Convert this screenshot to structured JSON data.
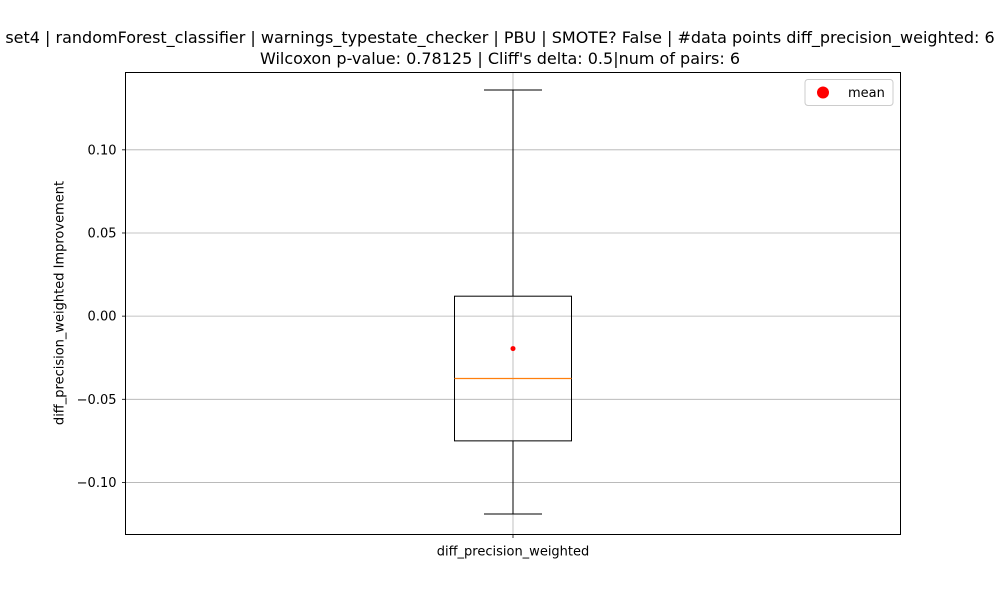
{
  "chart_data": {
    "type": "box",
    "title_line1": "set4 | randomForest_classifier | warnings_typestate_checker | PBU | SMOTE? False | #data points diff_precision_weighted: 6",
    "title_line2": "Wilcoxon p-value: 0.78125 | Cliff's delta: 0.5|num of pairs: 6",
    "xlabel": "",
    "ylabel": "diff_precision_weighted Improvement",
    "categories": [
      "diff_precision_weighted"
    ],
    "ylim": [
      -0.1313,
      0.1465
    ],
    "yticks": [
      -0.1,
      -0.05,
      0.0,
      0.05,
      0.1
    ],
    "ytick_labels": [
      "−0.10",
      "−0.05",
      "0.00",
      "0.05",
      "0.10"
    ],
    "grid": true,
    "box": {
      "whisker_low": -0.119,
      "q1": -0.075,
      "median": -0.0375,
      "q3": 0.012,
      "whisker_high": 0.136,
      "mean": -0.0195
    },
    "legend": {
      "position": "top-right",
      "entries": [
        {
          "label": "mean",
          "color": "#ff0000"
        }
      ]
    },
    "colors": {
      "box": "#000000",
      "median": "#ff7f0e",
      "mean": "#ff0000",
      "grid": "#b0b0b0",
      "axes": "#000000"
    }
  }
}
